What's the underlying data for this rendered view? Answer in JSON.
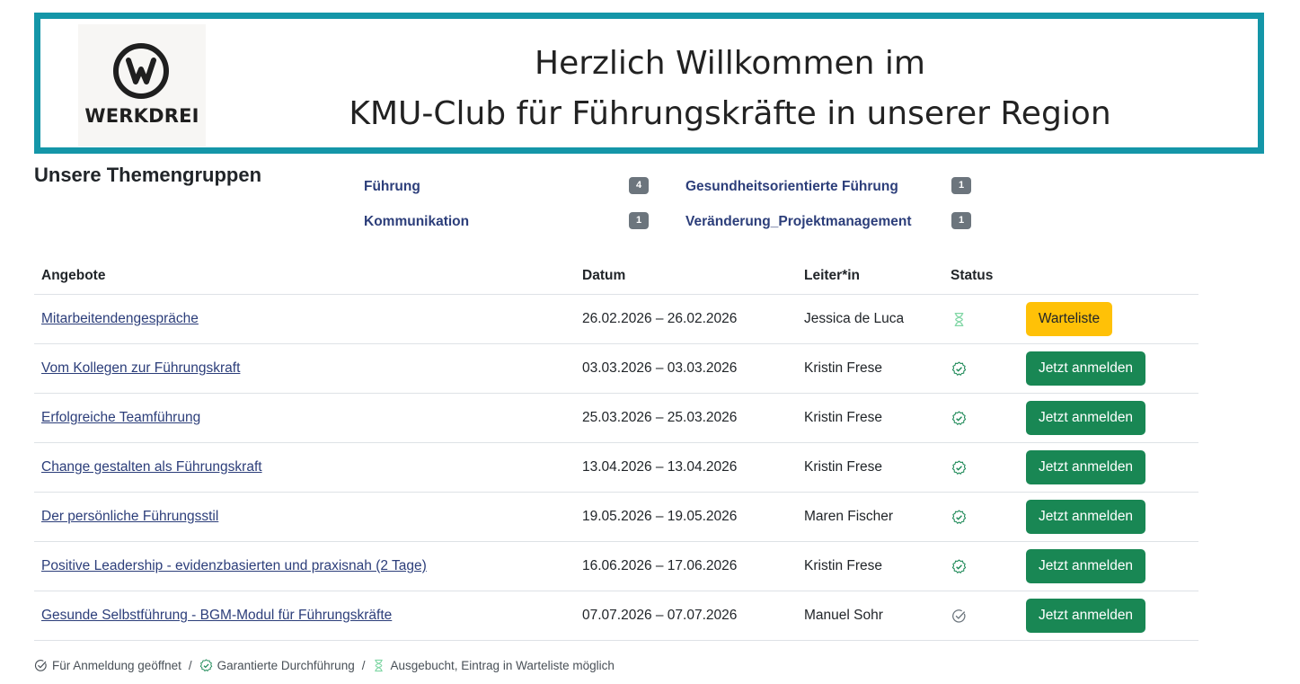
{
  "banner": {
    "logo_text": "WERKDREI",
    "title_line1": "Herzlich Willkommen im",
    "title_line2": "KMU-Club für Führungskräfte in unserer Region",
    "border_color": "#1496a8"
  },
  "groups": {
    "heading": "Unsere Themengruppen",
    "items": [
      {
        "label": "Führung",
        "count": "4"
      },
      {
        "label": "Gesundheitsorientierte Führung",
        "count": "1"
      },
      {
        "label": "Kommunikation",
        "count": "1"
      },
      {
        "label": "Veränderung_Projektmanagement",
        "count": "1"
      }
    ]
  },
  "table": {
    "headers": {
      "offer": "Angebote",
      "date": "Datum",
      "leader": "Leiter*in",
      "status": "Status"
    },
    "rows": [
      {
        "offer": "Mitarbeitendengespräche",
        "date": "26.02.2026 – 26.02.2026",
        "leader": "Jessica de Luca",
        "status_icon": "hourglass-icon",
        "action": "Warteliste"
      },
      {
        "offer": "Vom Kollegen zur Führungskraft",
        "date": "03.03.2026 – 03.03.2026",
        "leader": "Kristin Frese",
        "status_icon": "guaranteed-check-icon",
        "action": "Jetzt anmelden"
      },
      {
        "offer": "Erfolgreiche Teamführung",
        "date": "25.03.2026 – 25.03.2026",
        "leader": "Kristin Frese",
        "status_icon": "guaranteed-check-icon",
        "action": "Jetzt anmelden"
      },
      {
        "offer": "Change gestalten als Führungskraft",
        "date": "13.04.2026 – 13.04.2026",
        "leader": "Kristin Frese",
        "status_icon": "guaranteed-check-icon",
        "action": "Jetzt anmelden"
      },
      {
        "offer": "Der persönliche Führungsstil",
        "date": "19.05.2026 – 19.05.2026",
        "leader": "Maren Fischer",
        "status_icon": "guaranteed-check-icon",
        "action": "Jetzt anmelden"
      },
      {
        "offer": "Positive Leadership - evidenzbasierten und praxisnah (2 Tage)",
        "date": "16.06.2026 – 17.06.2026",
        "leader": "Kristin Frese",
        "status_icon": "guaranteed-check-icon",
        "action": "Jetzt anmelden"
      },
      {
        "offer": "Gesunde Selbstführung - BGM-Modul für Führungskräfte",
        "date": "07.07.2026 – 07.07.2026",
        "leader": "Manuel Sohr",
        "status_icon": "open-check-icon",
        "action": "Jetzt anmelden"
      }
    ]
  },
  "legend": {
    "open": "Für Anmeldung geöffnet",
    "guaranteed": "Garantierte Durchführung",
    "waitlist": "Ausgebucht, Eintrag in Warteliste möglich",
    "separator": "/"
  },
  "colors": {
    "green": "#198754",
    "yellow": "#ffc107",
    "link": "#2c3e7a",
    "badge": "#6c757d"
  }
}
